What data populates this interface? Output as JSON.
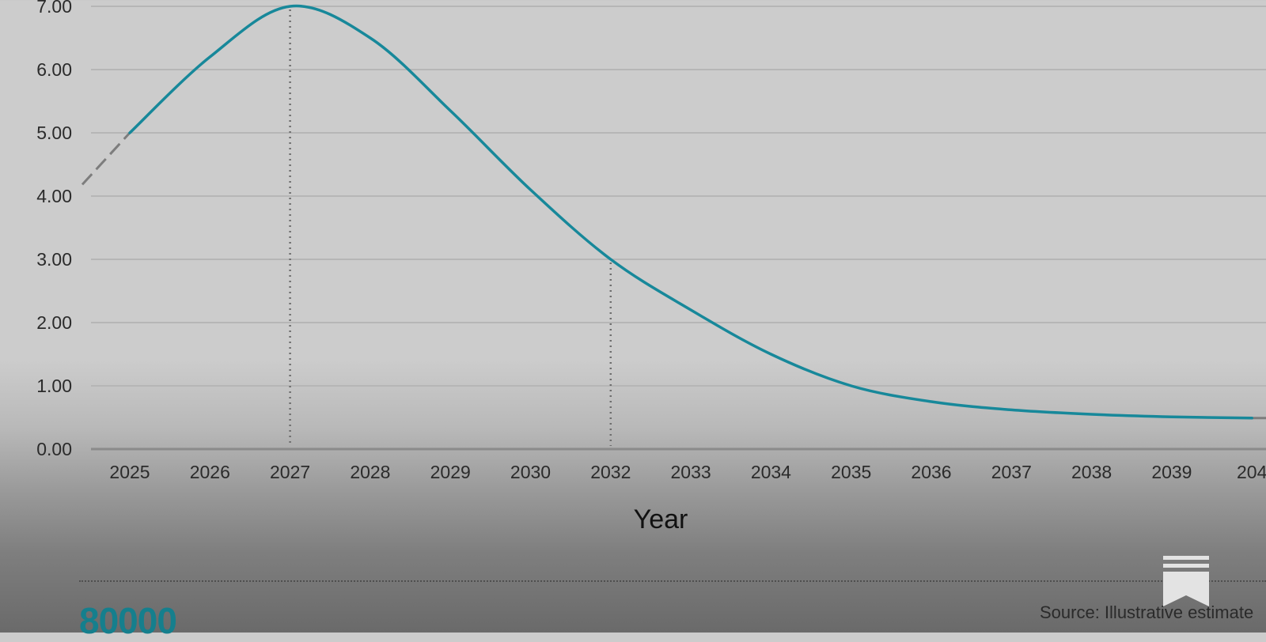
{
  "chart_data": {
    "type": "line",
    "title": "",
    "xlabel": "Year",
    "ylabel": "",
    "x_ticks": [
      "2025",
      "2026",
      "2027",
      "2028",
      "2029",
      "2030",
      "2032",
      "2033",
      "2034",
      "2035",
      "2036",
      "2037",
      "2038",
      "2039",
      "204"
    ],
    "y_ticks": [
      "0.00",
      "1.00",
      "2.00",
      "3.00",
      "4.00",
      "5.00",
      "6.00",
      "7.00"
    ],
    "ylim": [
      0,
      7
    ],
    "grid": true,
    "series": [
      {
        "color": "#17889a",
        "style": "solid",
        "points": [
          [
            "2025",
            5.0
          ],
          [
            "2026",
            6.2
          ],
          [
            "2027",
            7.0
          ],
          [
            "2028",
            6.5
          ],
          [
            "2029",
            5.35
          ],
          [
            "2030",
            4.1
          ],
          [
            "2032",
            3.0
          ],
          [
            "2033",
            2.2
          ],
          [
            "2034",
            1.5
          ],
          [
            "2035",
            1.0
          ],
          [
            "2036",
            0.75
          ],
          [
            "2037",
            0.62
          ],
          [
            "2038",
            0.55
          ],
          [
            "2039",
            0.51
          ],
          [
            "204",
            0.49
          ]
        ]
      }
    ],
    "reference_lines": [
      "2027",
      "2032"
    ]
  },
  "footer": {
    "number": "80000",
    "number_color": "#157f8d",
    "source": "Source: Illustrative estimate"
  },
  "icons": {
    "bookmark": "bookmark-icon"
  }
}
